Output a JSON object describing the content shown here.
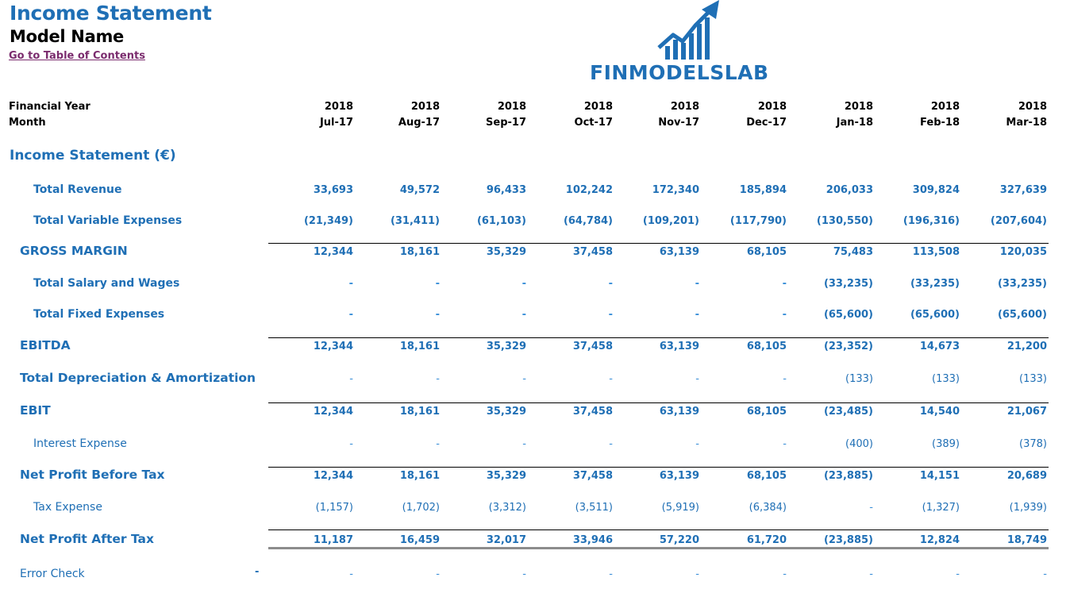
{
  "header": {
    "title": "Income Statement",
    "model_name": "Model Name",
    "toc_link": "Go to Table of Contents"
  },
  "logo": {
    "text": "FINMODELSLAB",
    "icon": "chart-arrow-logo-icon",
    "color": "#1F6FB5"
  },
  "columns": {
    "year_label": "Financial Year",
    "month_label": "Month",
    "years": [
      "2018",
      "2018",
      "2018",
      "2018",
      "2018",
      "2018",
      "2018",
      "2018",
      "2018"
    ],
    "months": [
      "Jul-17",
      "Aug-17",
      "Sep-17",
      "Oct-17",
      "Nov-17",
      "Dec-17",
      "Jan-18",
      "Feb-18",
      "Mar-18"
    ]
  },
  "section_title": "Income Statement (€)",
  "rows": [
    {
      "label": "Total Revenue",
      "values": [
        "33,693",
        "49,572",
        "96,433",
        "102,242",
        "172,340",
        "185,894",
        "206,033",
        "309,824",
        "327,639"
      ]
    },
    {
      "label": "Total Variable Expenses",
      "values": [
        "(21,349)",
        "(31,411)",
        "(61,103)",
        "(64,784)",
        "(109,201)",
        "(117,790)",
        "(130,550)",
        "(196,316)",
        "(207,604)"
      ]
    },
    {
      "label": "GROSS MARGIN",
      "values": [
        "12,344",
        "18,161",
        "35,329",
        "37,458",
        "63,139",
        "68,105",
        "75,483",
        "113,508",
        "120,035"
      ]
    },
    {
      "label": "Total Salary and Wages",
      "values": [
        "-",
        "-",
        "-",
        "-",
        "-",
        "-",
        "(33,235)",
        "(33,235)",
        "(33,235)"
      ]
    },
    {
      "label": "Total Fixed Expenses",
      "values": [
        "-",
        "-",
        "-",
        "-",
        "-",
        "-",
        "(65,600)",
        "(65,600)",
        "(65,600)"
      ]
    },
    {
      "label": "EBITDA",
      "values": [
        "12,344",
        "18,161",
        "35,329",
        "37,458",
        "63,139",
        "68,105",
        "(23,352)",
        "14,673",
        "21,200"
      ]
    },
    {
      "label": "Total Depreciation & Amortization",
      "values": [
        "-",
        "-",
        "-",
        "-",
        "-",
        "-",
        "(133)",
        "(133)",
        "(133)"
      ]
    },
    {
      "label": "EBIT",
      "values": [
        "12,344",
        "18,161",
        "35,329",
        "37,458",
        "63,139",
        "68,105",
        "(23,485)",
        "14,540",
        "21,067"
      ]
    },
    {
      "label": "Interest Expense",
      "values": [
        "-",
        "-",
        "-",
        "-",
        "-",
        "-",
        "(400)",
        "(389)",
        "(378)"
      ]
    },
    {
      "label": "Net Profit Before Tax",
      "values": [
        "12,344",
        "18,161",
        "35,329",
        "37,458",
        "63,139",
        "68,105",
        "(23,885)",
        "14,151",
        "20,689"
      ]
    },
    {
      "label": "Tax Expense",
      "values": [
        "(1,157)",
        "(1,702)",
        "(3,312)",
        "(3,511)",
        "(5,919)",
        "(6,384)",
        "-",
        "(1,327)",
        "(1,939)"
      ]
    },
    {
      "label": "Net Profit After Tax",
      "values": [
        "11,187",
        "16,459",
        "32,017",
        "33,946",
        "57,220",
        "61,720",
        "(23,885)",
        "12,824",
        "18,749"
      ]
    },
    {
      "label": "Error Check",
      "values": [
        "-",
        "-",
        "-",
        "-",
        "-",
        "-",
        "-",
        "-",
        "-"
      ]
    }
  ],
  "error_check_total": "-"
}
